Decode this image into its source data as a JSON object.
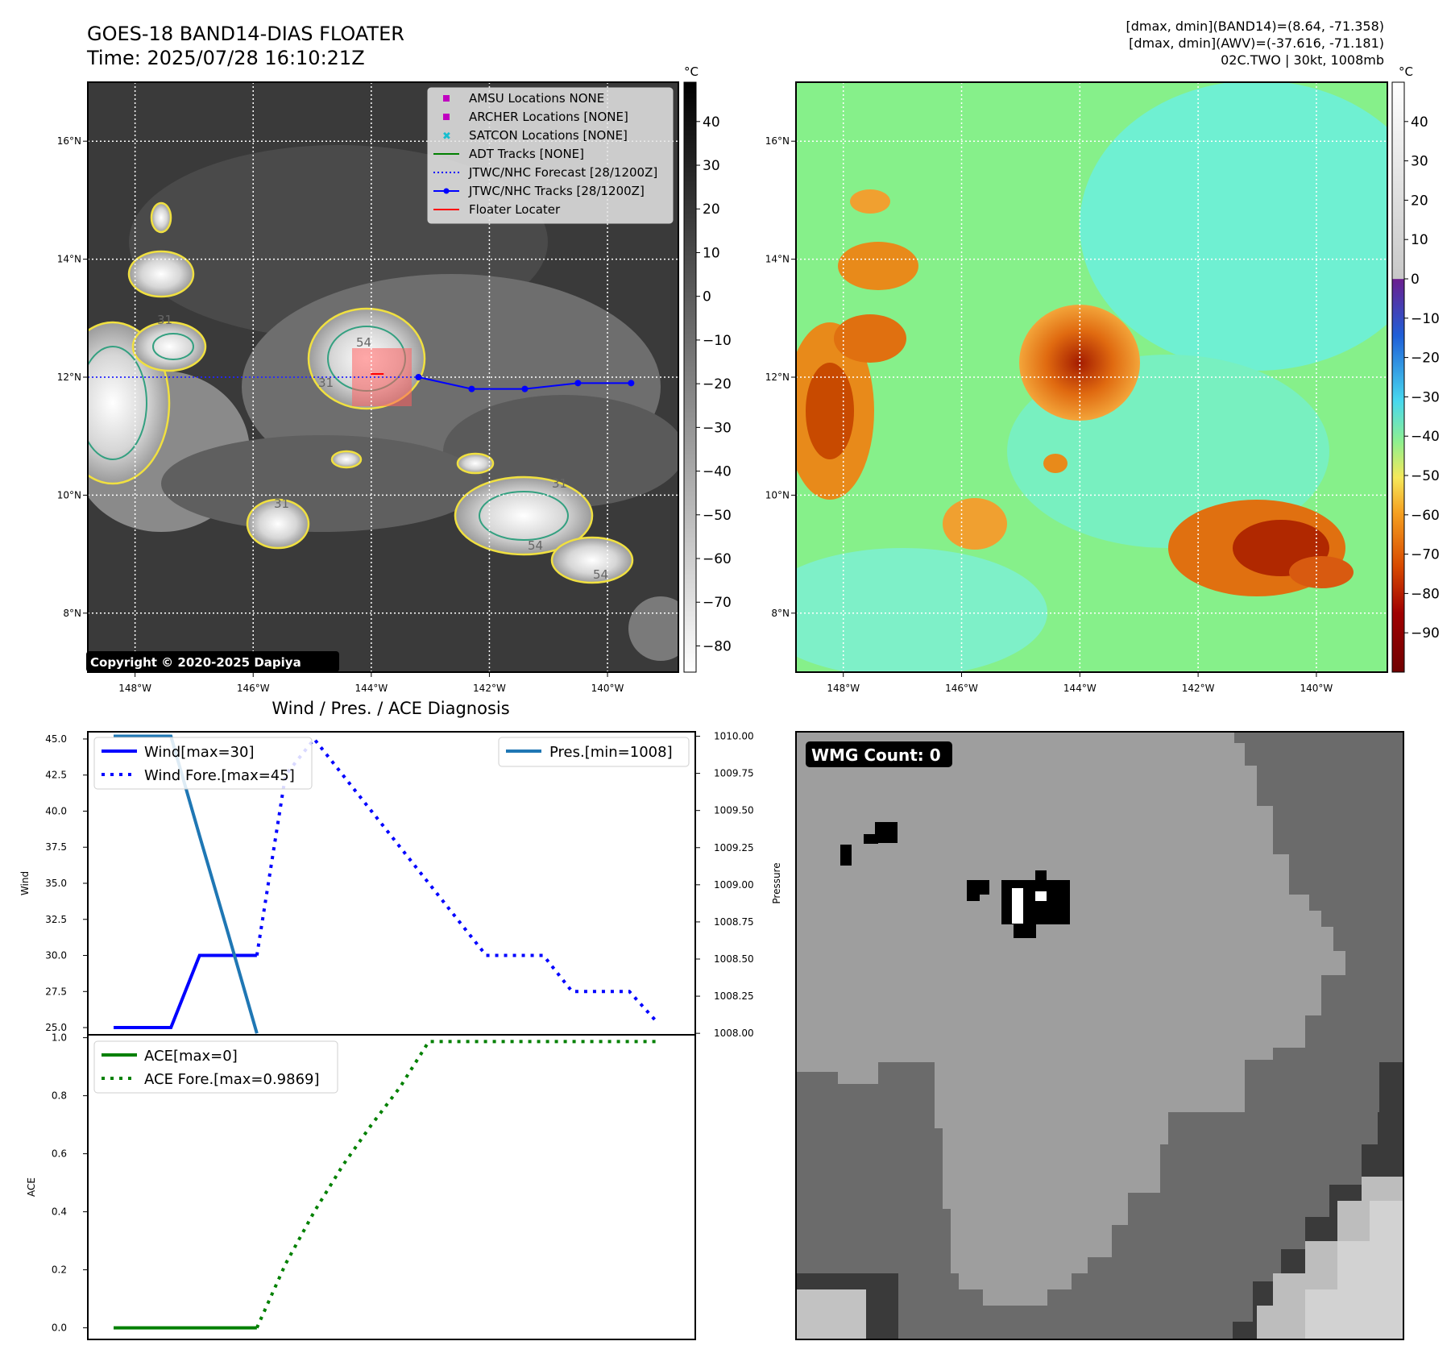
{
  "header": {
    "title_line1": "GOES-18 BAND14-DIAS FLOATER",
    "title_line2": "Time: 2025/07/28 16:10:21Z",
    "info_line1": "[dmax, dmin](BAND14)=(8.64, -71.358)",
    "info_line2": "[dmax, dmin](AWV)=(-37.616, -71.181)",
    "info_line3": "02C.TWO | 30kt, 1008mb"
  },
  "copyright": "Copyright © 2020-2025 Dapiya",
  "map": {
    "lon_ticks": [
      "148°W",
      "146°W",
      "144°W",
      "142°W",
      "140°W"
    ],
    "lat_ticks": [
      "16°N",
      "14°N",
      "12°N",
      "10°N",
      "8°N"
    ],
    "lon_range": [
      -148.8,
      -138.8
    ],
    "lat_range": [
      7.0,
      17.0
    ],
    "legend": [
      {
        "label": "AMSU Locations NONE",
        "marker": "square",
        "color": "#c000c0"
      },
      {
        "label": "ARCHER Locations [NONE]",
        "marker": "square",
        "color": "#c000c0"
      },
      {
        "label": "SATCON Locations [NONE]",
        "marker": "x",
        "color": "#17becf"
      },
      {
        "label": "ADT Tracks [NONE]",
        "marker": "line",
        "color": "#008000"
      },
      {
        "label": "JTWC/NHC Forecast [28/1200Z]",
        "marker": "dotted",
        "color": "#0000ff"
      },
      {
        "label": "JTWC/NHC Tracks [28/1200Z]",
        "marker": "line-dot",
        "color": "#0000ff"
      },
      {
        "label": "Floater Locater",
        "marker": "line",
        "color": "#ff0000"
      }
    ],
    "track": {
      "lon": [
        -143.2,
        -142.3,
        -141.4,
        -140.5,
        -139.6
      ],
      "lat": [
        12.0,
        11.8,
        11.8,
        11.9,
        11.9
      ]
    },
    "contour_labels": [
      "31",
      "54",
      "31",
      "54",
      "31",
      "31",
      "54"
    ]
  },
  "colorbar_ir": {
    "unit": "°C",
    "ticks": [
      "40",
      "30",
      "20",
      "10",
      "0",
      "−10",
      "−20",
      "−30",
      "−40",
      "−50",
      "−60",
      "−70",
      "−80"
    ],
    "range": [
      -86,
      49
    ]
  },
  "colorbar_wv": {
    "unit": "°C",
    "ticks": [
      "40",
      "30",
      "20",
      "10",
      "0",
      "−10",
      "−20",
      "−30",
      "−40",
      "−50",
      "−60",
      "−70",
      "−80",
      "−90"
    ],
    "range": [
      -100,
      50
    ]
  },
  "chart_title": "Wind / Pres. / ACE Diagnosis",
  "chart_data": [
    {
      "type": "line",
      "ylabel": "Wind",
      "y2label": "Pressure",
      "ylim": [
        24.5,
        45.5
      ],
      "y2lim": [
        1007.99,
        1010.03
      ],
      "yticks": [
        "45.0",
        "42.5",
        "40.0",
        "37.5",
        "35.0",
        "32.5",
        "30.0",
        "27.5",
        "25.0"
      ],
      "y2ticks": [
        "1010.00",
        "1009.75",
        "1009.50",
        "1009.25",
        "1009.00",
        "1008.75",
        "1008.50",
        "1008.25",
        "1008.00"
      ],
      "series": [
        {
          "name": "Wind[max=30]",
          "axis": "left",
          "style": "solid",
          "color": "#0000ff",
          "x": [
            0,
            1,
            2,
            3,
            4,
            5
          ],
          "values": [
            25,
            25,
            25,
            30,
            30,
            30
          ]
        },
        {
          "name": "Wind Fore.[max=45]",
          "axis": "left",
          "style": "dotted",
          "color": "#0000ff",
          "x": [
            5,
            6,
            7,
            8,
            9,
            10,
            11,
            12,
            13,
            14,
            15,
            16,
            17,
            18,
            19
          ],
          "values": [
            30,
            42.5,
            45,
            42.5,
            40,
            37.5,
            35,
            32.5,
            30,
            30,
            30,
            27.5,
            27.5,
            27.5,
            25.3
          ]
        },
        {
          "name": "Pres.[min=1008]",
          "axis": "right",
          "style": "solid",
          "color": "#1f77b4",
          "x": [
            0,
            1,
            2,
            3,
            4,
            5
          ],
          "values": [
            1010,
            1010,
            1010,
            1009.33,
            1008.67,
            1008
          ]
        }
      ]
    },
    {
      "type": "line",
      "ylabel": "ACE",
      "ylim": [
        -0.04,
        1.01
      ],
      "yticks": [
        "1.0",
        "0.8",
        "0.6",
        "0.4",
        "0.2",
        "0.0"
      ],
      "series": [
        {
          "name": "ACE[max=0]",
          "style": "solid",
          "color": "#008000",
          "x": [
            0,
            1,
            2,
            3,
            4,
            5
          ],
          "values": [
            0,
            0,
            0,
            0,
            0,
            0
          ]
        },
        {
          "name": "ACE Fore.[max=0.9869]",
          "style": "dotted",
          "color": "#008000",
          "x": [
            5,
            6,
            7,
            8,
            9,
            10,
            11,
            12,
            13,
            14,
            15,
            16,
            17,
            18,
            19
          ],
          "values": [
            0,
            0.22,
            0.4,
            0.56,
            0.7,
            0.83,
            0.9869,
            0.9869,
            0.9869,
            0.9869,
            0.9869,
            0.9869,
            0.9869,
            0.9869,
            0.9869
          ]
        }
      ]
    }
  ],
  "wmg": {
    "badge": "WMG Count: 0"
  }
}
